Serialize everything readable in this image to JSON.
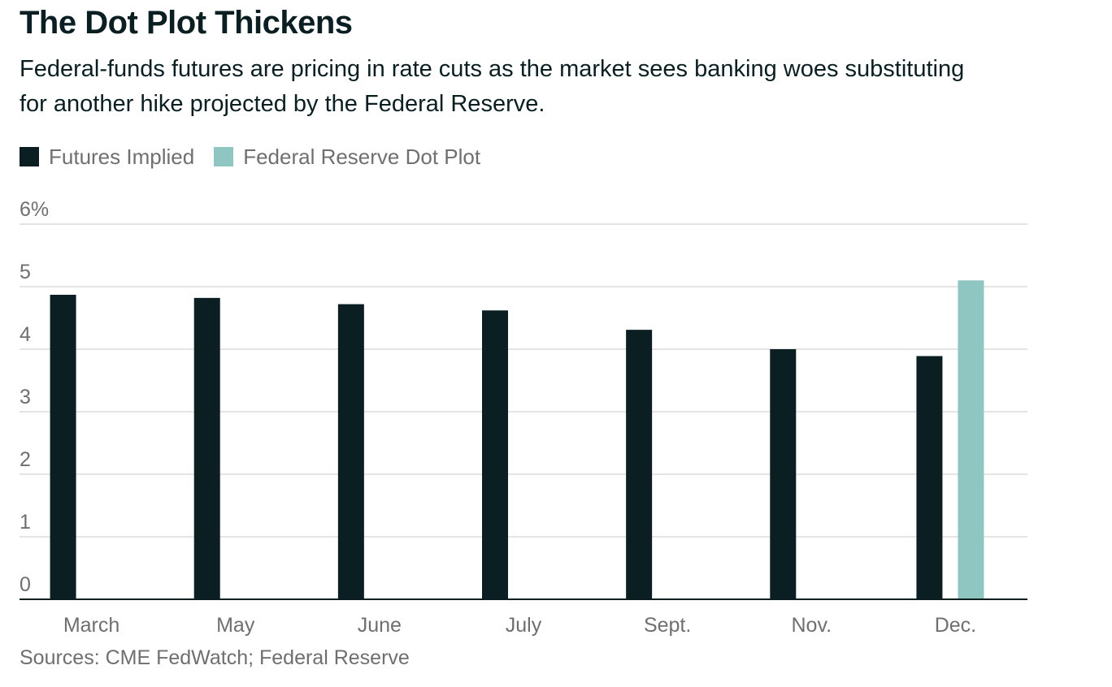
{
  "title": "The Dot Plot Thickens",
  "subtitle": "Federal-funds futures are pricing in rate cuts as the market sees banking woes substituting for another hike projected by the Federal Reserve.",
  "source": "Sources: CME FedWatch; Federal Reserve",
  "chart_data": {
    "type": "bar",
    "categories": [
      "March",
      "May",
      "June",
      "July",
      "Sept.",
      "Nov.",
      "Dec."
    ],
    "series": [
      {
        "name": "Futures Implied",
        "color": "#0b1f22",
        "values": [
          4.87,
          4.82,
          4.72,
          4.62,
          4.31,
          4.0,
          3.89
        ]
      },
      {
        "name": "Federal Reserve Dot Plot",
        "color": "#8fc6c2",
        "values": [
          null,
          null,
          null,
          null,
          null,
          null,
          5.1
        ]
      }
    ],
    "yticks": [
      "0",
      "1",
      "2",
      "3",
      "4",
      "5",
      "6%"
    ],
    "ylim": [
      0,
      6
    ],
    "grid": true,
    "legend_position": "top-left"
  }
}
